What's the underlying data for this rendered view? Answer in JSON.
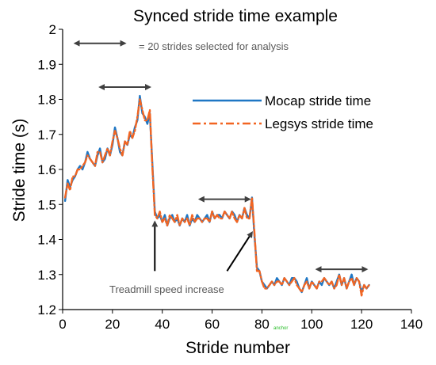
{
  "chart_data": {
    "type": "line",
    "title": "Synced stride time example",
    "xlabel": "Stride number",
    "ylabel": "Stride time (s)",
    "xlim": [
      0,
      140
    ],
    "ylim": [
      1.2,
      2.0
    ],
    "xticks": [
      0,
      20,
      40,
      60,
      80,
      100,
      120,
      140
    ],
    "yticks": [
      1.2,
      1.3,
      1.4,
      1.5,
      1.6,
      1.7,
      1.8,
      1.9,
      2.0
    ],
    "ytick_labels": [
      "1.2",
      "1.3",
      "1.4",
      "1.5",
      "1.6",
      "1.7",
      "1.8",
      "1.9",
      "2"
    ],
    "grid": false,
    "legend_position": "top-right",
    "series": [
      {
        "name": "Mocap stride time",
        "color": "#1f77c4",
        "style": "solid",
        "x": [
          1,
          2,
          3,
          4,
          5,
          6,
          7,
          8,
          9,
          10,
          11,
          12,
          13,
          14,
          15,
          16,
          17,
          18,
          19,
          20,
          21,
          22,
          23,
          24,
          25,
          26,
          27,
          28,
          29,
          30,
          31,
          32,
          33,
          34,
          35,
          36,
          37,
          38,
          39,
          40,
          41,
          42,
          43,
          44,
          45,
          46,
          47,
          48,
          49,
          50,
          51,
          52,
          53,
          54,
          55,
          56,
          57,
          58,
          59,
          60,
          61,
          62,
          63,
          64,
          65,
          66,
          67,
          68,
          69,
          70,
          71,
          72,
          73,
          74,
          75,
          76,
          77,
          78,
          79,
          80,
          81,
          82,
          83,
          84,
          85,
          86,
          87,
          88,
          89,
          90,
          91,
          92,
          93,
          94,
          95,
          96,
          97,
          98,
          99,
          100,
          101,
          102,
          103,
          104,
          105,
          106,
          107,
          108,
          109,
          110,
          111,
          112,
          113,
          114,
          115,
          116,
          117,
          118,
          119,
          120,
          121,
          122,
          123
        ],
        "y": [
          1.51,
          1.57,
          1.55,
          1.57,
          1.58,
          1.6,
          1.61,
          1.6,
          1.62,
          1.65,
          1.63,
          1.62,
          1.61,
          1.64,
          1.66,
          1.62,
          1.63,
          1.66,
          1.64,
          1.67,
          1.72,
          1.69,
          1.65,
          1.64,
          1.68,
          1.67,
          1.7,
          1.69,
          1.72,
          1.74,
          1.81,
          1.76,
          1.75,
          1.73,
          1.76,
          1.62,
          1.48,
          1.46,
          1.47,
          1.45,
          1.47,
          1.44,
          1.46,
          1.47,
          1.45,
          1.46,
          1.44,
          1.46,
          1.45,
          1.47,
          1.44,
          1.46,
          1.45,
          1.47,
          1.46,
          1.45,
          1.46,
          1.47,
          1.45,
          1.48,
          1.46,
          1.47,
          1.47,
          1.46,
          1.48,
          1.47,
          1.46,
          1.48,
          1.47,
          1.45,
          1.47,
          1.46,
          1.49,
          1.47,
          1.46,
          1.52,
          1.41,
          1.32,
          1.31,
          1.28,
          1.27,
          1.26,
          1.27,
          1.28,
          1.27,
          1.29,
          1.28,
          1.27,
          1.29,
          1.28,
          1.27,
          1.29,
          1.29,
          1.28,
          1.26,
          1.25,
          1.27,
          1.29,
          1.26,
          1.28,
          1.27,
          1.26,
          1.28,
          1.27,
          1.29,
          1.28,
          1.27,
          1.28,
          1.26,
          1.28,
          1.3,
          1.27,
          1.29,
          1.26,
          1.28,
          1.3,
          1.27,
          1.29,
          1.28,
          1.25,
          1.27,
          1.26,
          1.27
        ]
      },
      {
        "name": "Legsys stride time",
        "color": "#f26522",
        "style": "dashed",
        "x": [
          1,
          2,
          3,
          4,
          5,
          6,
          7,
          8,
          9,
          10,
          11,
          12,
          13,
          14,
          15,
          16,
          17,
          18,
          19,
          20,
          21,
          22,
          23,
          24,
          25,
          26,
          27,
          28,
          29,
          30,
          31,
          32,
          33,
          34,
          35,
          36,
          37,
          38,
          39,
          40,
          41,
          42,
          43,
          44,
          45,
          46,
          47,
          48,
          49,
          50,
          51,
          52,
          53,
          54,
          55,
          56,
          57,
          58,
          59,
          60,
          61,
          62,
          63,
          64,
          65,
          66,
          67,
          68,
          69,
          70,
          71,
          72,
          73,
          74,
          75,
          76,
          77,
          78,
          79,
          80,
          81,
          82,
          83,
          84,
          85,
          86,
          87,
          88,
          89,
          90,
          91,
          92,
          93,
          94,
          95,
          96,
          97,
          98,
          99,
          100,
          101,
          102,
          103,
          104,
          105,
          106,
          107,
          108,
          109,
          110,
          111,
          112,
          113,
          114,
          115,
          116,
          117,
          118,
          119,
          120,
          121,
          122,
          123
        ],
        "y": [
          1.52,
          1.56,
          1.54,
          1.58,
          1.58,
          1.6,
          1.6,
          1.61,
          1.62,
          1.64,
          1.63,
          1.62,
          1.61,
          1.65,
          1.65,
          1.62,
          1.64,
          1.66,
          1.64,
          1.68,
          1.71,
          1.69,
          1.66,
          1.64,
          1.68,
          1.67,
          1.71,
          1.69,
          1.71,
          1.75,
          1.8,
          1.77,
          1.74,
          1.74,
          1.77,
          1.61,
          1.47,
          1.46,
          1.48,
          1.45,
          1.46,
          1.44,
          1.47,
          1.46,
          1.45,
          1.47,
          1.44,
          1.46,
          1.45,
          1.46,
          1.44,
          1.47,
          1.45,
          1.46,
          1.46,
          1.45,
          1.46,
          1.46,
          1.45,
          1.48,
          1.46,
          1.47,
          1.46,
          1.46,
          1.48,
          1.47,
          1.46,
          1.48,
          1.46,
          1.45,
          1.47,
          1.46,
          1.49,
          1.46,
          1.46,
          1.52,
          1.42,
          1.31,
          1.31,
          1.28,
          1.26,
          1.26,
          1.27,
          1.28,
          1.27,
          1.28,
          1.28,
          1.27,
          1.29,
          1.28,
          1.27,
          1.28,
          1.29,
          1.27,
          1.26,
          1.25,
          1.27,
          1.28,
          1.26,
          1.28,
          1.27,
          1.26,
          1.28,
          1.28,
          1.29,
          1.28,
          1.27,
          1.28,
          1.26,
          1.27,
          1.3,
          1.27,
          1.29,
          1.26,
          1.28,
          1.29,
          1.27,
          1.29,
          1.28,
          1.24,
          1.27,
          1.26,
          1.27
        ]
      }
    ],
    "annotations": {
      "key_text": "= 20 strides selected for analysis",
      "treadmill_text": "Treadmill speed increase",
      "selection_ranges": [
        {
          "x": [
            15,
            35
          ],
          "y": 1.835
        },
        {
          "x": [
            55,
            75
          ],
          "y": 1.515
        },
        {
          "x": [
            102,
            122
          ],
          "y": 1.315
        }
      ],
      "key_arrow": {
        "x": [
          5,
          25
        ],
        "y": 1.96
      },
      "pointer_arrows": [
        {
          "from": [
            37,
            1.31
          ],
          "to": [
            37,
            1.45
          ]
        },
        {
          "from": [
            66,
            1.31
          ],
          "to": [
            76,
            1.42
          ]
        }
      ],
      "text_color": "#595959",
      "arrow_color": "#404040"
    },
    "watermark": "anchor"
  }
}
